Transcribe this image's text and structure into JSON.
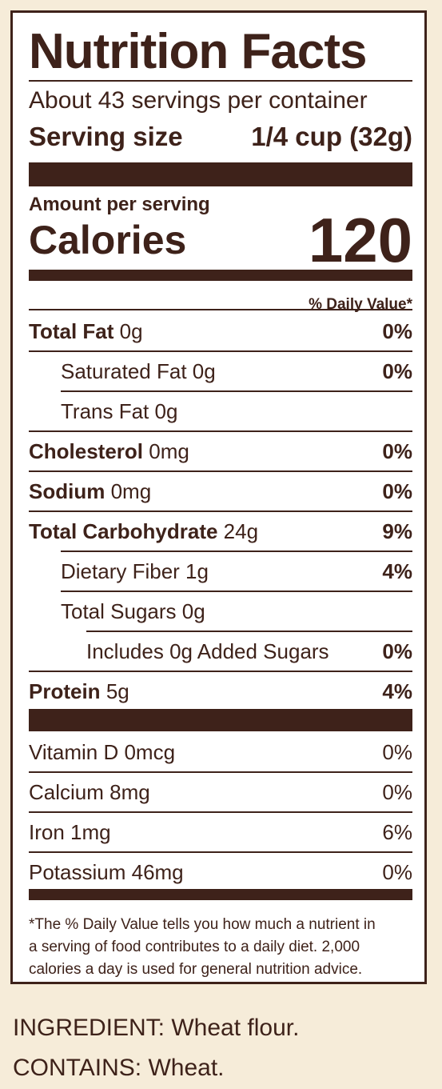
{
  "label": {
    "title": "Nutrition Facts",
    "servings_per_container": "About 43 servings per container",
    "serving_size_label": "Serving size",
    "serving_size_value": "1/4 cup (32g)",
    "amount_per_serving": "Amount per serving",
    "calories_label": "Calories",
    "calories_value": "120",
    "daily_value_header": "% Daily Value*",
    "nutrients": [
      {
        "name": "Total Fat",
        "amount": "0g",
        "dv": "0%"
      },
      {
        "name": "Saturated Fat 0g",
        "amount": "",
        "dv": "0%"
      },
      {
        "name": "Trans Fat 0g",
        "amount": "",
        "dv": ""
      },
      {
        "name": "Cholesterol",
        "amount": "0mg",
        "dv": "0%"
      },
      {
        "name": "Sodium",
        "amount": "0mg",
        "dv": "0%"
      },
      {
        "name": "Total Carbohydrate",
        "amount": "24g",
        "dv": "9%"
      },
      {
        "name": "Dietary Fiber 1g",
        "amount": "",
        "dv": "4%"
      },
      {
        "name": "Total Sugars 0g",
        "amount": "",
        "dv": ""
      },
      {
        "name": "Includes 0g Added Sugars",
        "amount": "",
        "dv": "0%"
      },
      {
        "name": "Protein",
        "amount": "5g",
        "dv": "4%"
      }
    ],
    "micronutrients": [
      {
        "name": "Vitamin D 0mcg",
        "dv": "0%"
      },
      {
        "name": "Calcium 8mg",
        "dv": "0%"
      },
      {
        "name": "Iron 1mg",
        "dv": "6%"
      },
      {
        "name": "Potassium 46mg",
        "dv": "0%"
      }
    ],
    "footnote_lines": [
      "*The % Daily Value tells you how much a nutrient in",
      "a serving of food contributes to a daily diet. 2,000",
      "calories a day is used for general nutrition advice."
    ]
  },
  "ingredients_line": "INGREDIENT: Wheat flour.",
  "contains_line": "CONTAINS: Wheat.",
  "colors": {
    "ink": "#3e221a",
    "background": "#f6ecd9",
    "panel": "#ffffff"
  }
}
